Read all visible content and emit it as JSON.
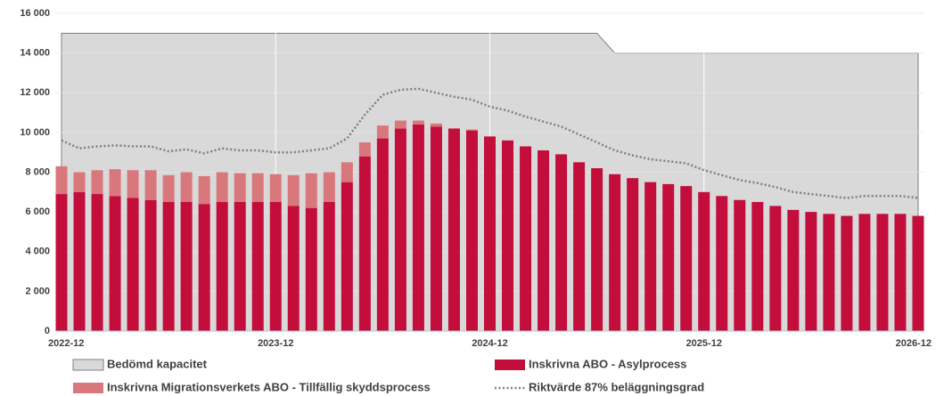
{
  "chart_data": {
    "type": "bar",
    "categories": [
      "2022-12",
      null,
      null,
      null,
      null,
      null,
      null,
      null,
      null,
      null,
      null,
      null,
      "2023-12",
      null,
      null,
      null,
      null,
      null,
      null,
      null,
      null,
      null,
      null,
      null,
      "2024-12",
      null,
      null,
      null,
      null,
      null,
      null,
      null,
      null,
      null,
      null,
      null,
      "2025-12",
      null,
      null,
      null,
      null,
      null,
      null,
      null,
      null,
      null,
      null,
      null,
      "2026-12"
    ],
    "ylim": [
      0,
      16000
    ],
    "yticks": [
      0,
      {
        "value": 2000,
        "label": "2 000"
      },
      {
        "value": 4000,
        "label": "4 000"
      },
      {
        "value": 6000,
        "label": "6 000"
      },
      {
        "value": 8000,
        "label": "8 000"
      },
      {
        "value": 10000,
        "label": "10 000"
      },
      {
        "value": 12000,
        "label": "12 000"
      },
      {
        "value": 14000,
        "label": "14 000"
      },
      {
        "value": 16000,
        "label": "16 000"
      }
    ],
    "grid": true,
    "series": [
      {
        "name": "Bedömd kapacitet",
        "type": "area",
        "color": "#d9d9d9",
        "values": [
          15000,
          15000,
          15000,
          15000,
          15000,
          15000,
          15000,
          15000,
          15000,
          15000,
          15000,
          15000,
          15000,
          15000,
          15000,
          15000,
          15000,
          15000,
          15000,
          15000,
          15000,
          15000,
          15000,
          15000,
          15000,
          15000,
          15000,
          15000,
          15000,
          15000,
          15000,
          14000,
          14000,
          14000,
          14000,
          14000,
          14000,
          14000,
          14000,
          14000,
          14000,
          14000,
          14000,
          14000,
          14000,
          14000,
          14000,
          14000,
          14000
        ]
      },
      {
        "name": "Inskrivna ABO - Asylprocess",
        "type": "bar",
        "color": "#c30d3b",
        "values": [
          6900,
          7000,
          6900,
          6800,
          6700,
          6600,
          6500,
          6500,
          6400,
          6500,
          6500,
          6500,
          6500,
          6300,
          6200,
          6500,
          7500,
          8800,
          9700,
          10200,
          10400,
          10300,
          10200,
          10100,
          9800,
          9600,
          9300,
          9100,
          8900,
          8500,
          8200,
          7900,
          7700,
          7500,
          7400,
          7300,
          7000,
          6800,
          6600,
          6500,
          6300,
          6100,
          6000,
          5900,
          5800,
          5900,
          5900,
          5900,
          5800
        ]
      },
      {
        "name": "Inskrivna Migrationsverkets ABO - Tillfällig skyddsprocess",
        "type": "bar",
        "color": "#d9787c",
        "values": [
          1400,
          1000,
          1200,
          1350,
          1400,
          1500,
          1350,
          1500,
          1400,
          1500,
          1450,
          1450,
          1400,
          1550,
          1750,
          1500,
          1000,
          700,
          650,
          400,
          200,
          150,
          0,
          50,
          0,
          0,
          0,
          0,
          0,
          0,
          0,
          0,
          0,
          0,
          0,
          0,
          0,
          0,
          0,
          0,
          0,
          0,
          0,
          0,
          0,
          0,
          0,
          0,
          0
        ]
      },
      {
        "name": "Riktvärde  87% beläggningsgrad",
        "type": "line",
        "color": "#7f7f7f",
        "values": [
          9600,
          9200,
          9300,
          9350,
          9300,
          9300,
          9050,
          9150,
          8950,
          9200,
          9100,
          9100,
          9000,
          9000,
          9100,
          9200,
          9700,
          10900,
          11900,
          12150,
          12200,
          12000,
          11800,
          11650,
          11300,
          11100,
          10800,
          10550,
          10300,
          9900,
          9500,
          9100,
          8850,
          8650,
          8550,
          8450,
          8100,
          7850,
          7600,
          7450,
          7250,
          7000,
          6900,
          6800,
          6700,
          6800,
          6800,
          6800,
          6700
        ]
      }
    ]
  }
}
